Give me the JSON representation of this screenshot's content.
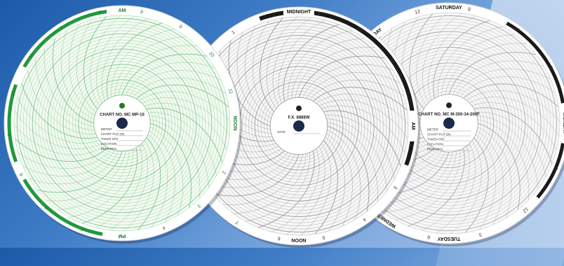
{
  "charts": [
    {
      "id": "green",
      "accent": "#1f9a3a",
      "grid": "#7cc68a",
      "paper": "#f4faf2",
      "rim_labels": {
        "top": "AM",
        "bottom": "PM",
        "right": "NOON"
      },
      "rim_numbers": [
        "8",
        "9",
        "10",
        "11",
        "1",
        "2",
        "3",
        "4",
        "5",
        "6",
        "7",
        "8",
        "9",
        "10",
        "11",
        "1",
        "2"
      ],
      "center": {
        "chart_no": "CHART NO. MC MP-10",
        "fields": [
          "METER",
          "CHART PUT ON",
          "TAKEN OFF",
          "LOCATION",
          "REMARKS"
        ]
      }
    },
    {
      "id": "black",
      "accent": "#1a1a1a",
      "grid": "#9a9a9a",
      "paper": "#f7f7f7",
      "rim_labels": {
        "top": "MIDNIGHT",
        "bottom": "NOON",
        "right": "AM"
      },
      "rim_numbers": [
        "9",
        "10",
        "11",
        "1",
        "2",
        "3",
        "4",
        "5",
        "6",
        "7",
        "8",
        "9",
        "10",
        "11",
        "1",
        "2"
      ],
      "center": {
        "chart_no": "F.X. 8888W",
        "fields": [
          "DATE"
        ]
      }
    },
    {
      "id": "weekly",
      "accent": "#1a1a1a",
      "grid": "#a8a8a8",
      "paper": "#f7f7f7",
      "rim_labels": {
        "top": "SATURDAY",
        "left_top": "FRIDAY",
        "right": "MONDAY",
        "bottom": "TUESDAY",
        "bottom_left": "WEDNESDAY"
      },
      "rim_numbers": [
        "9",
        "12",
        "3",
        "6",
        "9",
        "12",
        "3",
        "6",
        "9",
        "12",
        "3",
        "6",
        "9",
        "12"
      ],
      "center": {
        "chart_no": "CHART NO. MC M-300-34-200F",
        "fields": [
          "METER",
          "CHART PUT ON",
          "TAKEN OFF",
          "LOCATION",
          "REMARKS"
        ]
      }
    }
  ]
}
